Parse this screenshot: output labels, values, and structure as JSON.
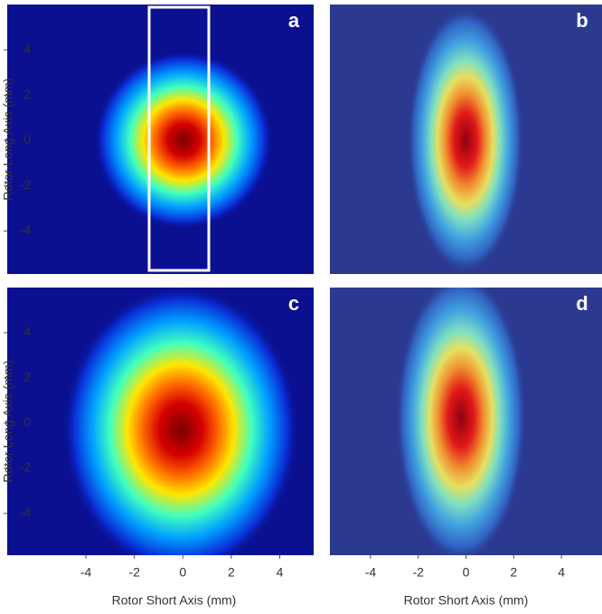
{
  "chart_data": [
    {
      "type": "heatmap",
      "label": "a",
      "ylabel": "Rotor Long Axis (mm)",
      "xlim": [
        -7.25,
        5.4
      ],
      "ylim": [
        -5.9,
        6
      ],
      "yticks": [
        -4,
        -2,
        0,
        2,
        4
      ]
    },
    {
      "type": "heatmap",
      "label": "b",
      "xlim": [
        -5.7,
        5.7
      ],
      "ylim": [
        -5.9,
        6
      ]
    },
    {
      "type": "heatmap",
      "label": "c",
      "xlabel": "Rotor Short Axis (mm)",
      "ylabel": "Rotor Long Axis (mm)",
      "xlim": [
        -7.25,
        5.4
      ],
      "ylim": [
        -5.85,
        6
      ],
      "xticks": [
        -4,
        -2,
        0,
        2,
        4
      ],
      "yticks": [
        -4,
        -2,
        0,
        2,
        4
      ]
    },
    {
      "type": "heatmap",
      "label": "d",
      "xlabel": "Rotor Short Axis (mm)",
      "xlim": [
        -5.7,
        5.7
      ],
      "ylim": [
        -5.85,
        6
      ],
      "xticks": [
        -4,
        -2,
        0,
        2,
        4
      ]
    }
  ]
}
